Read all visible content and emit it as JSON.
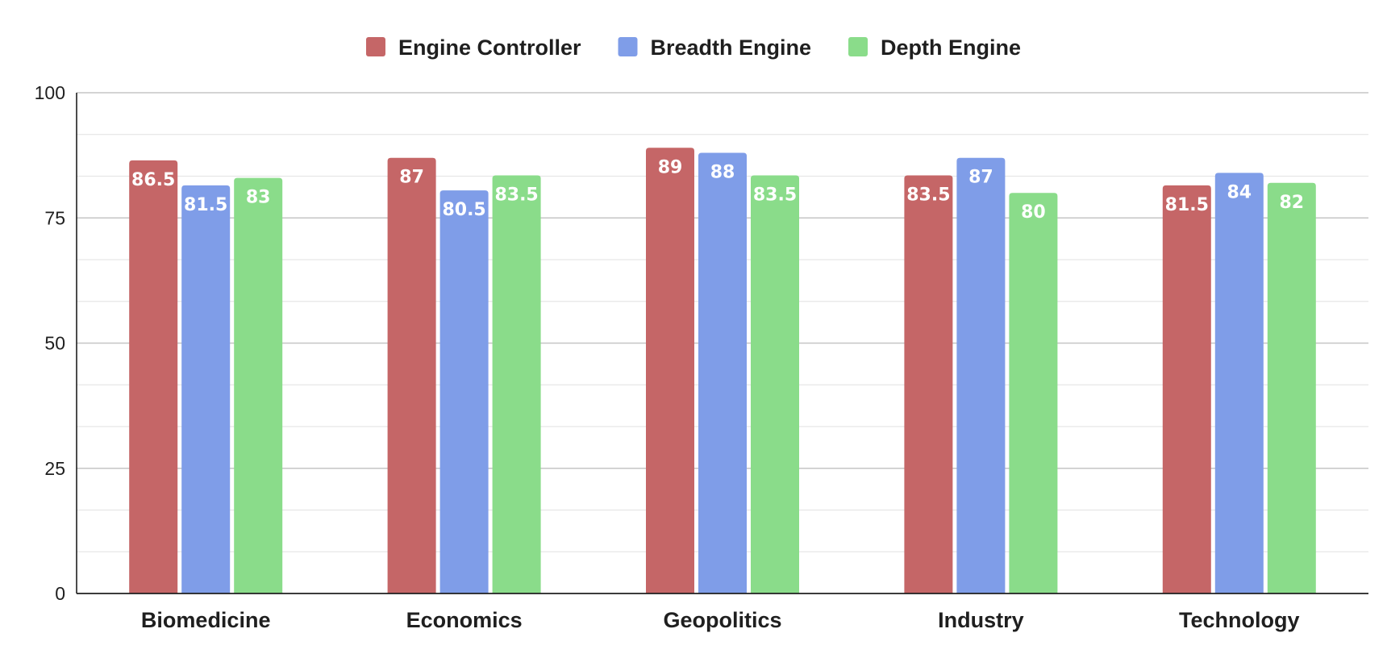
{
  "chart_data": {
    "type": "bar",
    "title": "",
    "xlabel": "",
    "ylabel": "",
    "categories": [
      "Biomedicine",
      "Economics",
      "Geopolitics",
      "Industry",
      "Technology"
    ],
    "series": [
      {
        "name": "Engine Controller",
        "color": "#c56667",
        "values": [
          86.5,
          87,
          89,
          83.5,
          81.5
        ],
        "labels": [
          "86.5",
          "87",
          "89",
          "83.5",
          "81.5"
        ]
      },
      {
        "name": "Breadth Engine",
        "color": "#7f9de8",
        "values": [
          81.5,
          80.5,
          88,
          87,
          84
        ],
        "labels": [
          "81.5",
          "80.5",
          "88",
          "87",
          "84"
        ]
      },
      {
        "name": "Depth Engine",
        "color": "#8adc8a",
        "values": [
          83,
          83.5,
          83.5,
          80,
          82
        ],
        "labels": [
          "83",
          "83.5",
          "83.5",
          "80",
          "82"
        ]
      }
    ],
    "ylim": [
      0,
      100
    ],
    "yticks": [
      0,
      25,
      50,
      75,
      100
    ],
    "ytick_labels": [
      "0",
      "25",
      "50",
      "75",
      "100"
    ],
    "minor_grid_step": 8.333,
    "grid": true,
    "legend_position": "top-center",
    "data_labels": true
  }
}
